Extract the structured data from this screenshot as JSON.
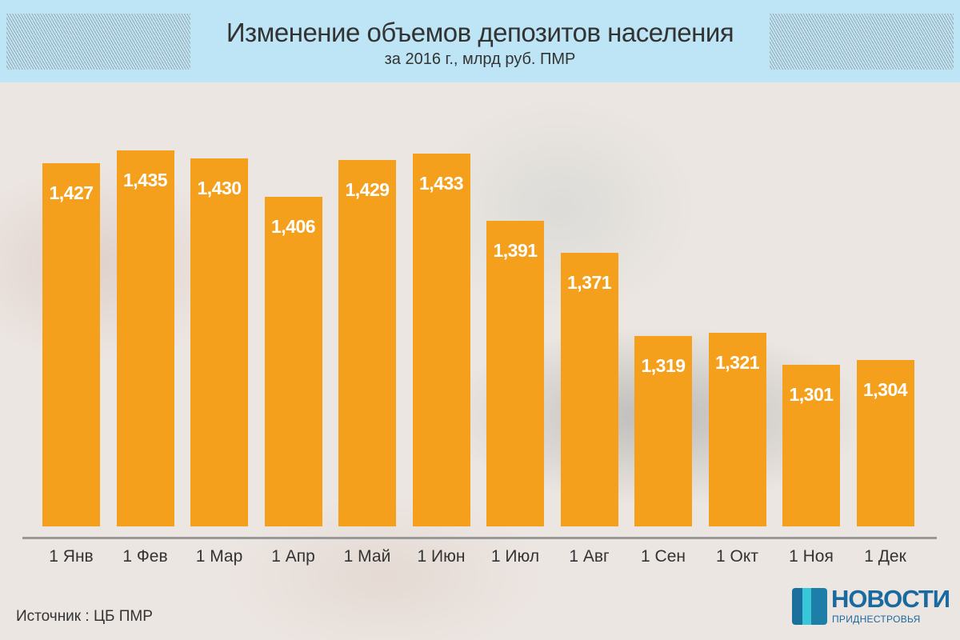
{
  "chart_data": {
    "type": "bar",
    "title": "Изменение объемов депозитов населения",
    "subtitle": "за 2016 г., млрд руб. ПМР",
    "xlabel": "",
    "ylabel": "",
    "categories": [
      "1 Янв",
      "1 Фев",
      "1 Мар",
      "1 Апр",
      "1 Май",
      "1 Июн",
      "1 Июл",
      "1 Авг",
      "1 Сен",
      "1 Окт",
      "1 Ноя",
      "1 Дек"
    ],
    "values": [
      1.427,
      1.435,
      1.43,
      1.406,
      1.429,
      1.433,
      1.391,
      1.371,
      1.319,
      1.321,
      1.301,
      1.304
    ],
    "value_labels": [
      "1,427",
      "1,435",
      "1,430",
      "1,406",
      "1,429",
      "1,433",
      "1,391",
      "1,371",
      "1,319",
      "1,321",
      "1,301",
      "1,304"
    ],
    "ylim": [
      1.2,
      1.45
    ],
    "grid": false,
    "bar_color": "#f4a01c"
  },
  "footer": {
    "source_label": "Источник :",
    "source_value": "ЦБ ПМР"
  },
  "logo": {
    "line1": "НОВОСТИ",
    "line2": "ПРИДНЕСТРОВЬЯ"
  }
}
